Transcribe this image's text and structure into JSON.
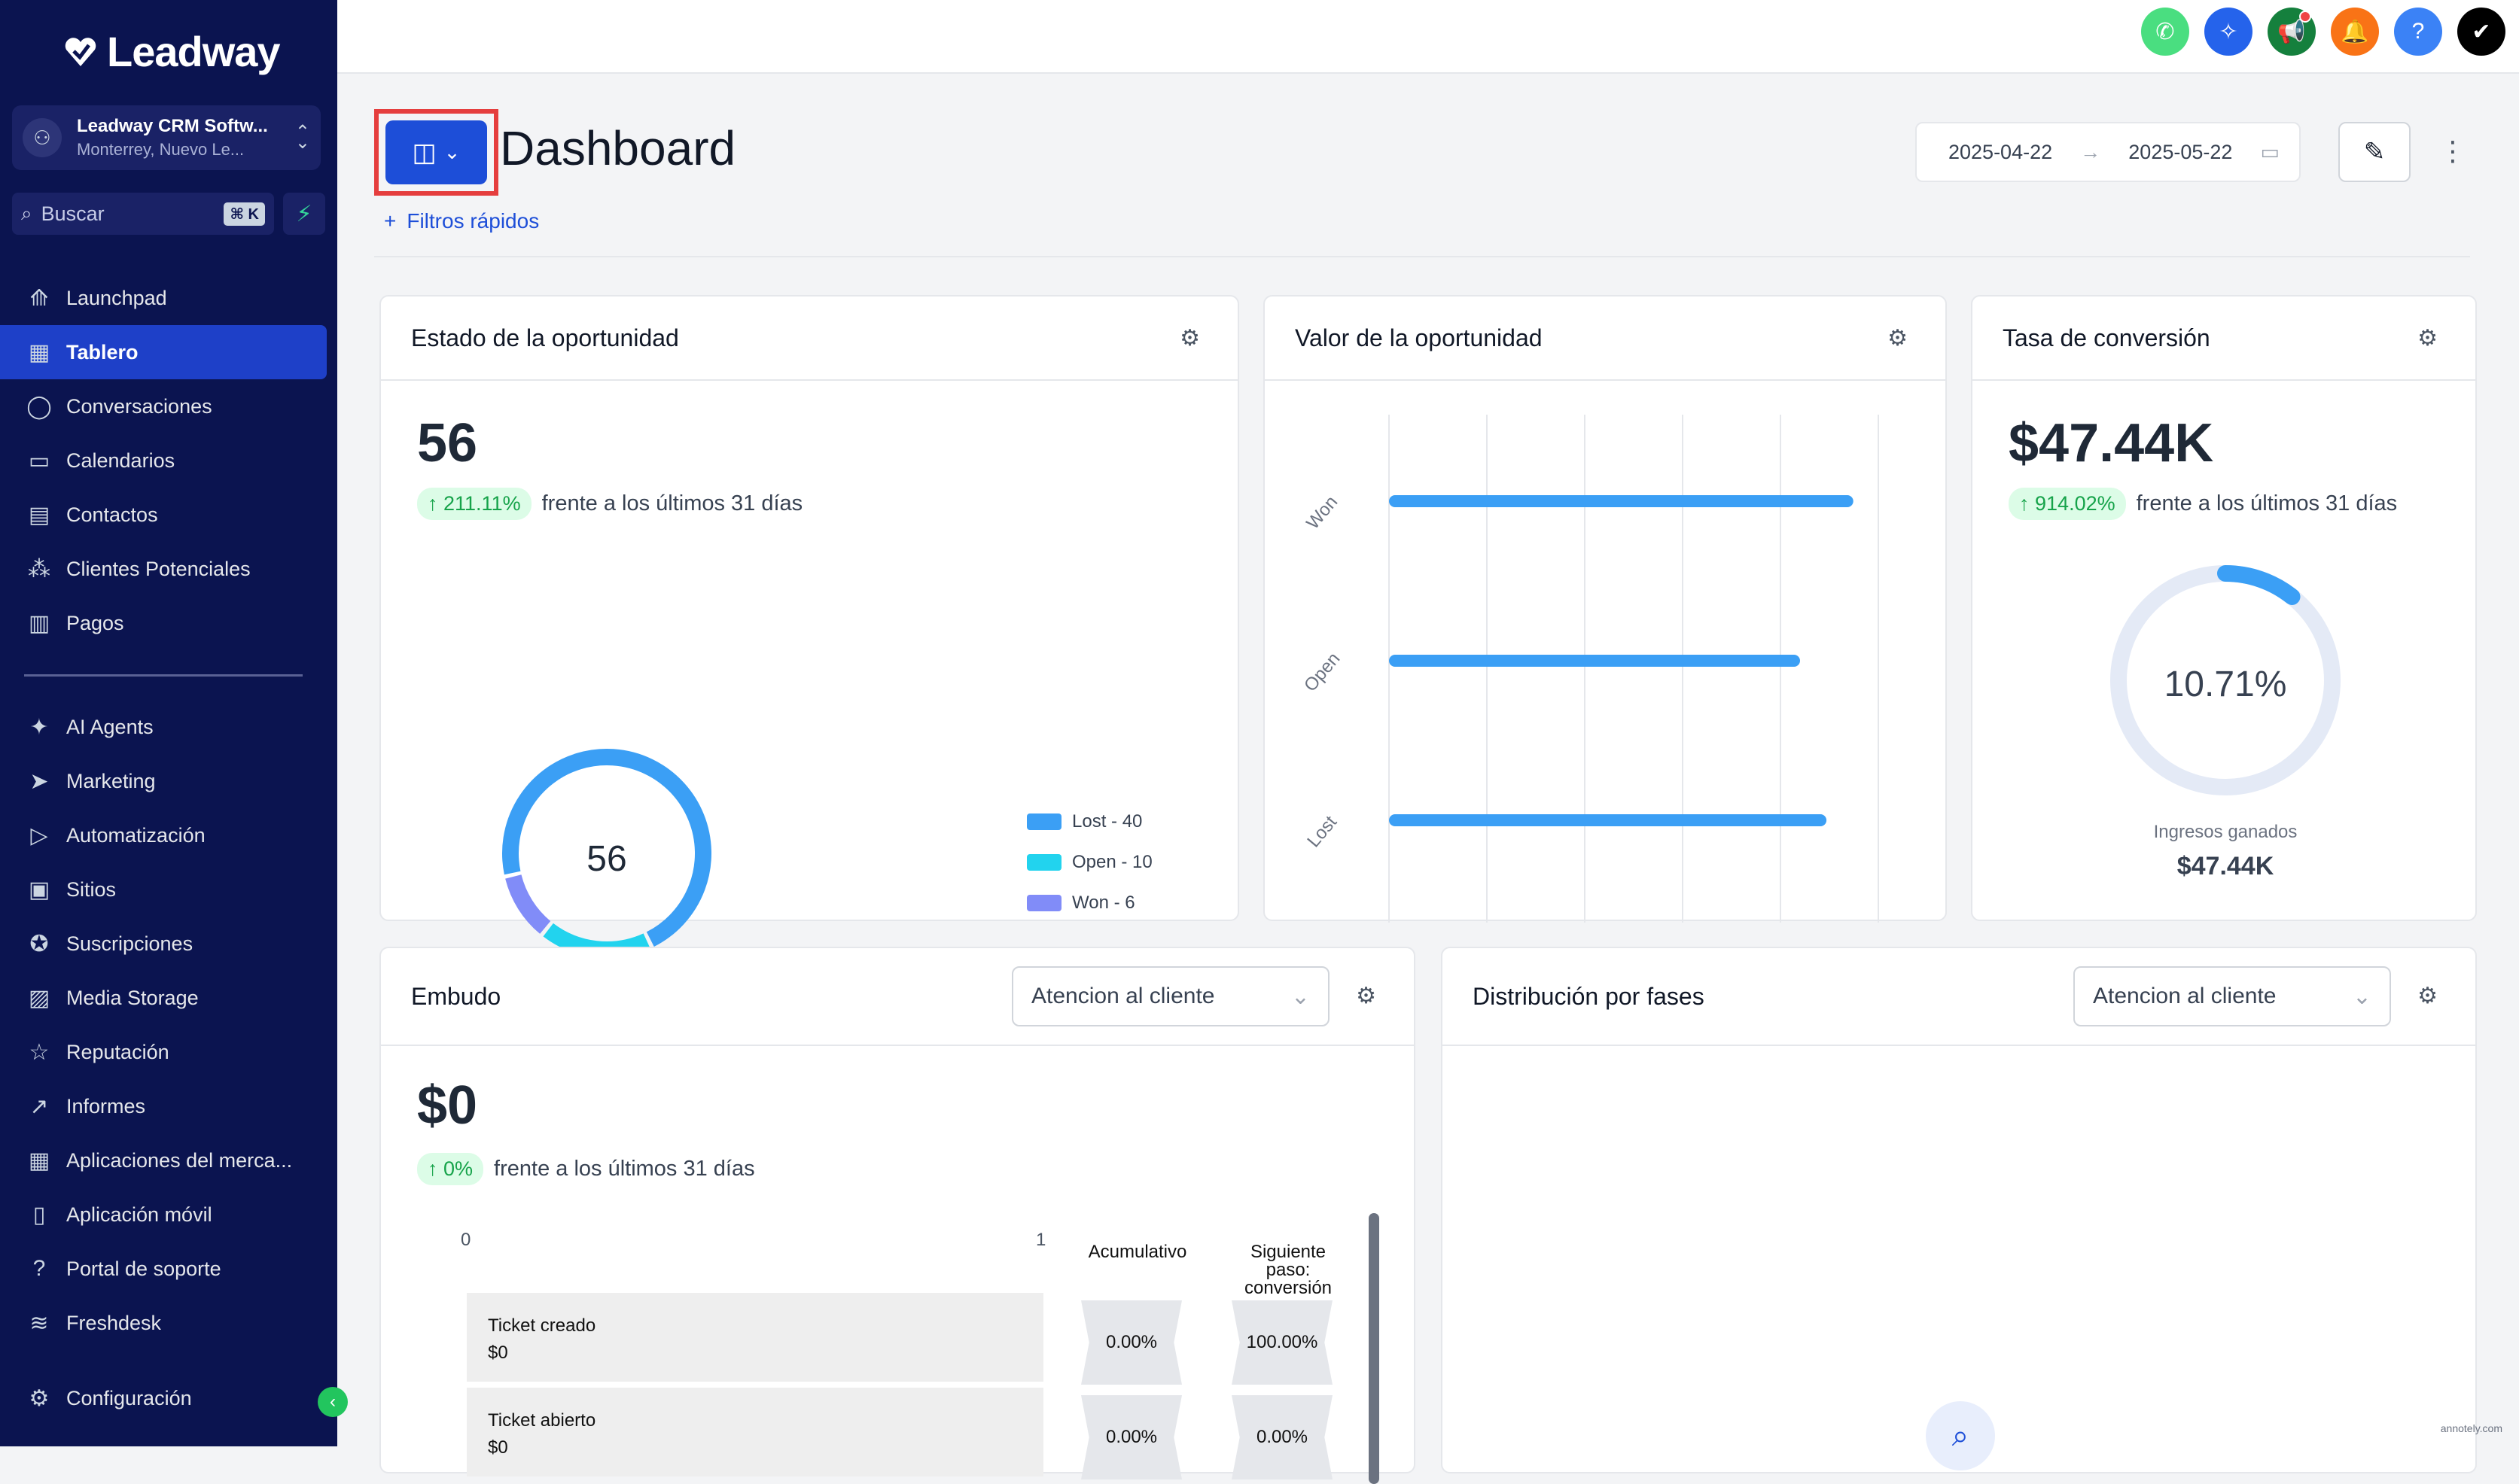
{
  "brand": {
    "name": "Leadway"
  },
  "account": {
    "name": "Leadway CRM Softw...",
    "location": "Monterrey, Nuevo Le..."
  },
  "search": {
    "placeholder": "Buscar",
    "shortcut": "⌘ K"
  },
  "nav": {
    "primary": [
      {
        "label": "Launchpad",
        "icon": "rocket-icon"
      },
      {
        "label": "Tablero",
        "icon": "grid-icon",
        "active": true
      },
      {
        "label": "Conversaciones",
        "icon": "chat-icon"
      },
      {
        "label": "Calendarios",
        "icon": "calendar-icon"
      },
      {
        "label": "Contactos",
        "icon": "contacts-icon"
      },
      {
        "label": "Clientes Potenciales",
        "icon": "leads-icon"
      },
      {
        "label": "Pagos",
        "icon": "payments-icon"
      }
    ],
    "secondary": [
      {
        "label": "AI Agents",
        "icon": "sparkle-icon"
      },
      {
        "label": "Marketing",
        "icon": "send-icon"
      },
      {
        "label": "Automatización",
        "icon": "automation-icon"
      },
      {
        "label": "Sitios",
        "icon": "sites-icon"
      },
      {
        "label": "Suscripciones",
        "icon": "membership-icon"
      },
      {
        "label": "Media Storage",
        "icon": "image-icon"
      },
      {
        "label": "Reputación",
        "icon": "star-icon"
      },
      {
        "label": "Informes",
        "icon": "trend-icon"
      },
      {
        "label": "Aplicaciones del merca...",
        "icon": "apps-icon"
      },
      {
        "label": "Aplicación móvil",
        "icon": "mobile-icon"
      },
      {
        "label": "Portal de soporte",
        "icon": "question-icon"
      },
      {
        "label": "Freshdesk",
        "icon": "freshdesk-icon"
      }
    ],
    "settings": {
      "label": "Configuración",
      "icon": "gear-icon"
    }
  },
  "topbar": {
    "icons": [
      {
        "name": "phone-icon",
        "color": "#4ade80"
      },
      {
        "name": "ai-sparkle-icon",
        "color": "#2563eb"
      },
      {
        "name": "megaphone-icon",
        "color": "#15803d"
      },
      {
        "name": "bell-icon",
        "color": "#f97316"
      },
      {
        "name": "help-icon",
        "color": "#3b82f6"
      },
      {
        "name": "brand-icon",
        "color": "#000000"
      }
    ]
  },
  "header": {
    "title": "Dashboard",
    "quick_filters": "Filtros rápidos",
    "date_start": "2025-04-22",
    "date_end": "2025-05-22"
  },
  "cards": {
    "estado": {
      "title": "Estado de la oportunidad",
      "value": "56",
      "change": "211.11%",
      "compare": "frente a los últimos 31 días",
      "donut_center": "56"
    },
    "valor": {
      "title": "Valor de la oportunidad"
    },
    "tasa": {
      "title": "Tasa de conversión",
      "value": "$47.44K",
      "change": "914.02%",
      "compare": "frente a los últimos 31 días",
      "ring_value": "10.71%",
      "ring_fraction": 0.1071,
      "revenue_label": "Ingresos ganados",
      "revenue_value": "$47.44K"
    },
    "embudo": {
      "title": "Embudo",
      "pipeline": "Atencion al cliente",
      "value": "$0",
      "change": "0%",
      "compare": "frente a los últimos 31 días",
      "axis_min": "0",
      "axis_max": "1",
      "col_cumulative": "Acumulativo",
      "col_next": "Siguiente paso: conversión",
      "rows": [
        {
          "stage": "Ticket creado",
          "amount": "$0",
          "cumulative": "0.00%",
          "next": "100.00%"
        },
        {
          "stage": "Ticket abierto",
          "amount": "$0",
          "cumulative": "0.00%",
          "next": "0.00%"
        }
      ]
    },
    "distribucion": {
      "title": "Distribución por fases",
      "pipeline": "Atencion al cliente"
    }
  },
  "chart_data": [
    {
      "type": "pie",
      "categories": [
        "Lost",
        "Open",
        "Won"
      ],
      "values": [
        40,
        10,
        6
      ],
      "legend": [
        "Lost - 40",
        "Open - 10",
        "Won - 6"
      ],
      "colors": [
        "#3b9ff5",
        "#22d3ee",
        "#818cf8"
      ]
    },
    {
      "type": "bar",
      "orientation": "horizontal",
      "categories": [
        "Won",
        "Open",
        "Lost"
      ],
      "values": [
        47440,
        42000,
        44700
      ],
      "color": "#3b9ff5",
      "grid": true
    }
  ],
  "watermark": "annotely.com"
}
